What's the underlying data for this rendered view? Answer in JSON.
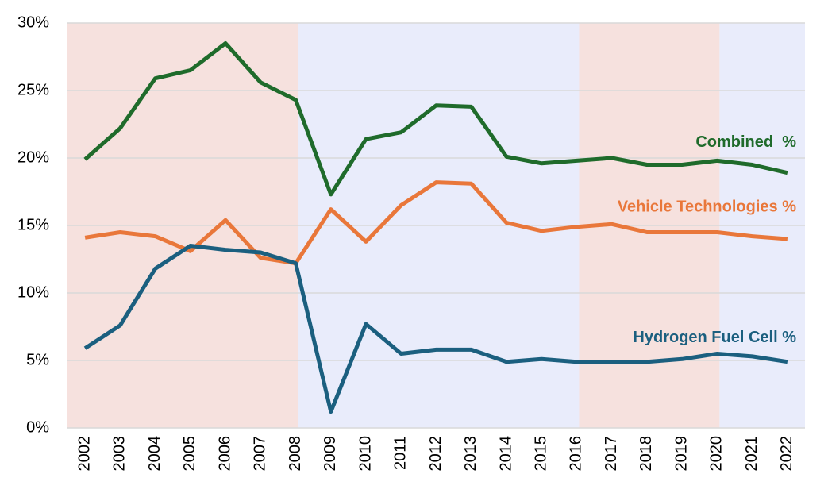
{
  "chart_data": {
    "type": "line",
    "categories": [
      "2002",
      "2003",
      "2004",
      "2005",
      "2006",
      "2007",
      "2008",
      "2009",
      "2010",
      "2011",
      "2012",
      "2013",
      "2014",
      "2015",
      "2016",
      "2017",
      "2018",
      "2019",
      "2020",
      "2021",
      "2022"
    ],
    "series": [
      {
        "name": "Combined  %",
        "color": "#1f6b2b",
        "values": [
          19.9,
          22.2,
          25.9,
          26.5,
          28.5,
          25.6,
          24.3,
          17.3,
          21.4,
          21.9,
          23.9,
          23.8,
          20.1,
          19.6,
          19.8,
          20.0,
          19.5,
          19.5,
          19.8,
          19.5,
          18.9
        ]
      },
      {
        "name": "Vehicle Technologies %",
        "color": "#e9773a",
        "values": [
          14.1,
          14.5,
          14.2,
          13.1,
          15.4,
          12.6,
          12.2,
          16.2,
          13.8,
          16.5,
          18.2,
          18.1,
          15.2,
          14.6,
          14.9,
          15.1,
          14.5,
          14.5,
          14.5,
          14.2,
          14.0
        ]
      },
      {
        "name": "Hydrogen Fuel Cell %",
        "color": "#1b5f7f",
        "values": [
          5.9,
          7.6,
          11.8,
          13.5,
          13.2,
          13.0,
          12.2,
          1.2,
          7.7,
          5.5,
          5.8,
          5.8,
          4.9,
          5.1,
          4.9,
          4.9,
          4.9,
          5.1,
          5.5,
          5.3,
          4.9
        ]
      }
    ],
    "ylim": [
      0,
      30
    ],
    "yticks": [
      {
        "value": 0,
        "label": "0%"
      },
      {
        "value": 5,
        "label": "5%"
      },
      {
        "value": 10,
        "label": "10%"
      },
      {
        "value": 15,
        "label": "15%"
      },
      {
        "value": 20,
        "label": "20%"
      },
      {
        "value": 25,
        "label": "25%"
      },
      {
        "value": 30,
        "label": "30%"
      }
    ],
    "grid": true,
    "shading": [
      {
        "start": "2002",
        "end": "2008",
        "color": "#f6e1de"
      },
      {
        "start": "2008",
        "end": "2016",
        "color": "#e9ecfb"
      },
      {
        "start": "2016",
        "end": "2020",
        "color": "#f6e1de"
      },
      {
        "start": "2020",
        "end": "2022",
        "color": "#e9ecfb"
      }
    ]
  }
}
